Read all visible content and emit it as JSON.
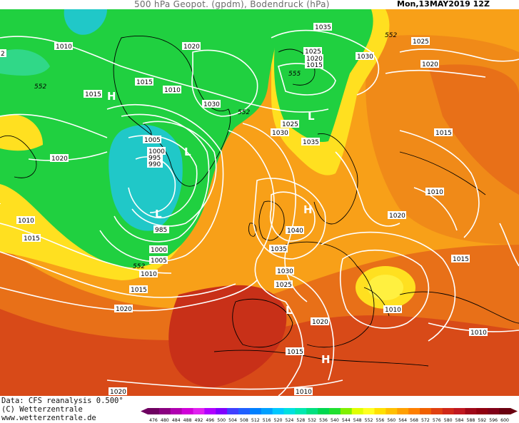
{
  "header": {
    "title": "500 hPa Geopot. (gpdm), Bodendruck (hPa)",
    "date": "Mon,13MAY2019  12Z"
  },
  "footer": {
    "data_line": "Data: CFS reanalysis 0.500°",
    "copyright": "(C) Wetterzentrale",
    "url": "www.wetterzentrale.de"
  },
  "colorbar": {
    "ticks": [
      "476",
      "480",
      "484",
      "488",
      "492",
      "496",
      "500",
      "504",
      "508",
      "512",
      "516",
      "520",
      "524",
      "528",
      "532",
      "536",
      "540",
      "544",
      "548",
      "552",
      "556",
      "560",
      "564",
      "568",
      "572",
      "576",
      "580",
      "584",
      "588",
      "592",
      "596",
      "600"
    ],
    "colors": [
      "#6e0060",
      "#8a0080",
      "#b000b0",
      "#d000d8",
      "#e020f0",
      "#b000ff",
      "#8000ff",
      "#4040ff",
      "#2060ff",
      "#0080ff",
      "#00a0ff",
      "#00c8ff",
      "#00e0e0",
      "#00e8b0",
      "#00e080",
      "#00d850",
      "#20e030",
      "#80f000",
      "#e0ff00",
      "#ffff20",
      "#ffe000",
      "#ffc000",
      "#ffa000",
      "#ff8000",
      "#f06000",
      "#e04010",
      "#d02818",
      "#c01820",
      "#a00818",
      "#900010",
      "#800018",
      "#6a0010"
    ]
  },
  "isobars": [
    "1010",
    "1015",
    "1020",
    "1015",
    "1010",
    "1020",
    "1030",
    "1015",
    "1010",
    "552",
    "1035",
    "552",
    "1025",
    "1020",
    "1015",
    "1030",
    "555",
    "1025",
    "1030",
    "1035",
    "1005",
    "1000",
    "995",
    "990",
    "985",
    "1000",
    "1005",
    "1010",
    "552",
    "1015",
    "1020",
    "1040",
    "1035",
    "1030",
    "1025",
    "1020",
    "1015",
    "1010",
    "1020",
    "1015",
    "1020",
    "1025",
    "1015",
    "1010",
    "1010",
    "1020",
    "1010",
    "1010",
    "552",
    "2",
    "1025",
    "1020"
  ],
  "pressure_centers": [
    "H",
    "L",
    "L",
    "H",
    "L",
    "H",
    "L"
  ],
  "map": {
    "field": "500 hPa geopotential height",
    "colors": {
      "green": "#20d040",
      "cyan": "#20c8c8",
      "yellow": "#ffee20",
      "orange": "#f8a018",
      "dark_orange": "#e86010",
      "red_orange": "#d84018",
      "isobar": "#ffffff",
      "coastline": "#000000"
    }
  }
}
